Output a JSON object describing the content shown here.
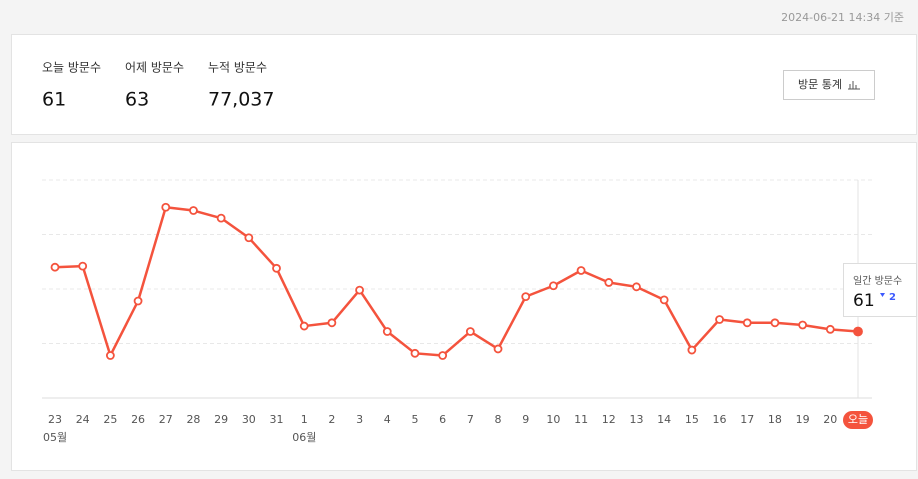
{
  "timestamp": "2024-06-21 14:34 기준",
  "stats": [
    {
      "label": "오늘 방문수",
      "value": "61"
    },
    {
      "label": "어제 방문수",
      "value": "63"
    },
    {
      "label": "누적 방문수",
      "value": "77,037"
    }
  ],
  "button": "방문 통계",
  "chart_data": {
    "type": "line",
    "categories": [
      "23",
      "24",
      "25",
      "26",
      "27",
      "28",
      "29",
      "30",
      "31",
      "1",
      "2",
      "3",
      "4",
      "5",
      "6",
      "7",
      "8",
      "9",
      "10",
      "11",
      "12",
      "13",
      "14",
      "15",
      "16",
      "17",
      "18",
      "19",
      "20",
      "오늘"
    ],
    "months": [
      "05월",
      null,
      null,
      null,
      null,
      null,
      null,
      null,
      null,
      "06월",
      null,
      null,
      null,
      null,
      null,
      null,
      null,
      null,
      null,
      null,
      null,
      null,
      null,
      null,
      null,
      null,
      null,
      null,
      null,
      null
    ],
    "values": [
      120,
      121,
      39,
      89,
      175,
      172,
      165,
      147,
      119,
      66,
      69,
      99,
      61,
      41,
      39,
      61,
      45,
      93,
      103,
      117,
      106,
      102,
      90,
      44,
      72,
      69,
      69,
      67,
      63,
      61
    ],
    "color": "#f4533d",
    "ylim": [
      0,
      200
    ],
    "yticks": [
      0,
      50,
      100,
      150,
      200
    ],
    "grid": true
  },
  "tooltip": {
    "label": "일간 방문수",
    "change": 2
  }
}
